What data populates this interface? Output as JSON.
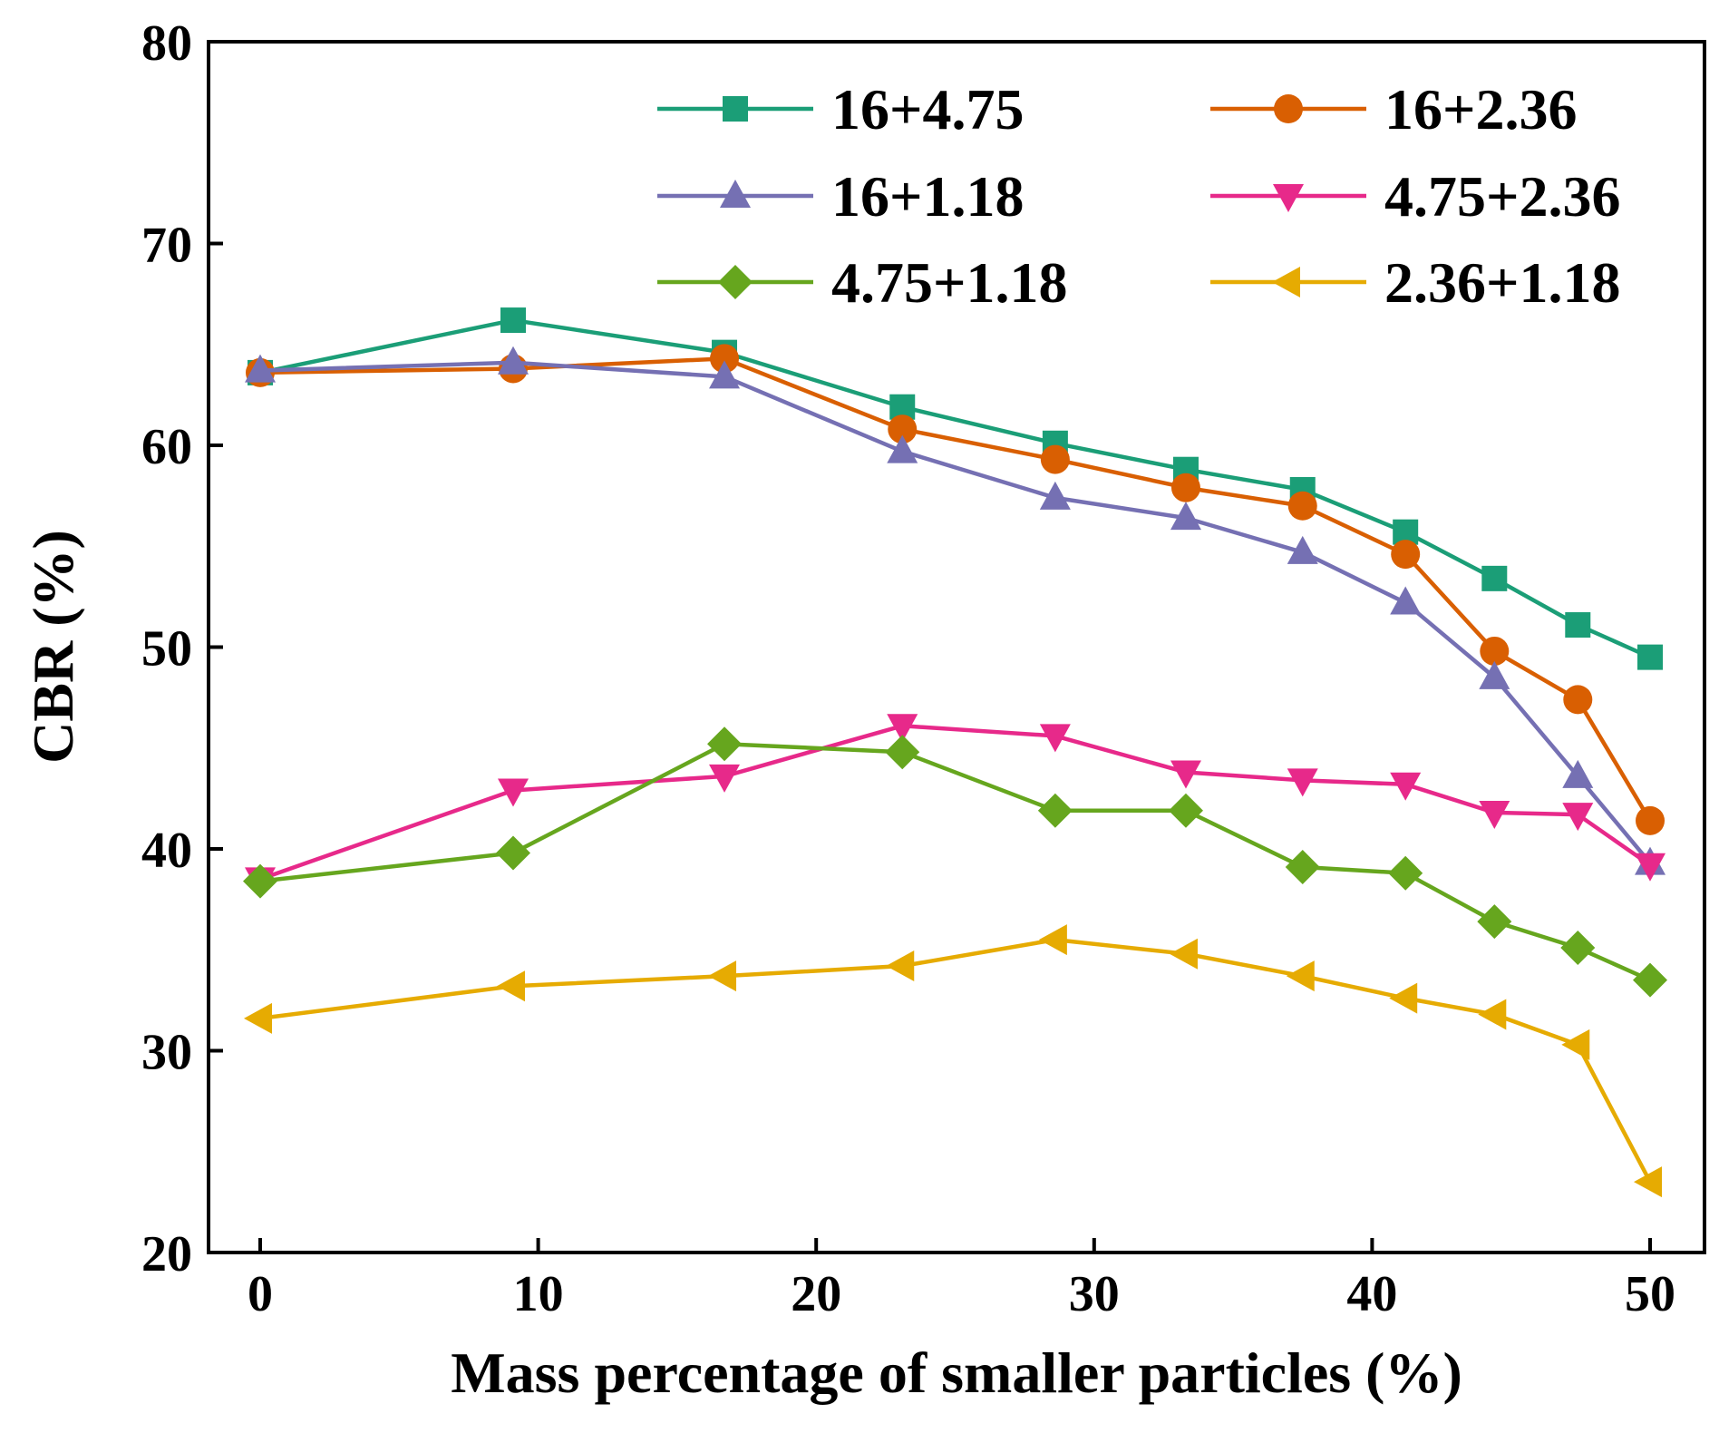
{
  "chart_data": {
    "type": "line",
    "title": "",
    "xlabel": "Mass percentage of smaller particles (%)",
    "ylabel": "CBR (%)",
    "xlim": [
      -2,
      52
    ],
    "ylim": [
      20,
      80
    ],
    "xticks": [
      0,
      10,
      20,
      30,
      40,
      50
    ],
    "yticks": [
      20,
      30,
      40,
      50,
      60,
      70,
      80
    ],
    "xtick_labels": [
      "0",
      "10",
      "20",
      "30",
      "40",
      "50"
    ],
    "ytick_labels": [
      "20",
      "30",
      "40",
      "50",
      "60",
      "70",
      "80"
    ],
    "grid": false,
    "legend_position": "top-right",
    "x": [
      0,
      9.1,
      16.7,
      23.1,
      28.6,
      33.3,
      37.5,
      41.2,
      44.4,
      47.4,
      50
    ],
    "series": [
      {
        "name": "16+4.75",
        "color": "#1b9e77",
        "marker": "square",
        "values": [
          63.6,
          66.2,
          64.6,
          61.9,
          60.1,
          58.8,
          57.8,
          55.7,
          53.4,
          51.1,
          49.5
        ]
      },
      {
        "name": "16+2.36",
        "color": "#d95f02",
        "marker": "circle",
        "values": [
          63.6,
          63.8,
          64.3,
          60.8,
          59.3,
          57.9,
          57.0,
          54.6,
          49.8,
          47.4,
          41.4
        ]
      },
      {
        "name": "16+1.18",
        "color": "#7570b3",
        "marker": "triangle-up",
        "values": [
          63.7,
          64.1,
          63.4,
          59.7,
          57.4,
          56.4,
          54.7,
          52.2,
          48.5,
          43.6,
          39.3
        ]
      },
      {
        "name": "4.75+2.36",
        "color": "#e7298a",
        "marker": "triangle-down",
        "values": [
          38.5,
          42.9,
          43.6,
          46.1,
          45.6,
          43.8,
          43.4,
          43.2,
          41.8,
          41.7,
          39.2
        ]
      },
      {
        "name": "4.75+1.18",
        "color": "#66a61e",
        "marker": "diamond",
        "values": [
          38.4,
          39.8,
          45.2,
          44.8,
          41.9,
          41.9,
          39.1,
          38.8,
          36.4,
          35.1,
          33.5
        ]
      },
      {
        "name": "2.36+1.18",
        "color": "#e6ab02",
        "marker": "triangle-left",
        "values": [
          31.6,
          33.2,
          33.7,
          34.2,
          35.5,
          34.8,
          33.7,
          32.6,
          31.8,
          30.3,
          23.5
        ]
      }
    ]
  }
}
